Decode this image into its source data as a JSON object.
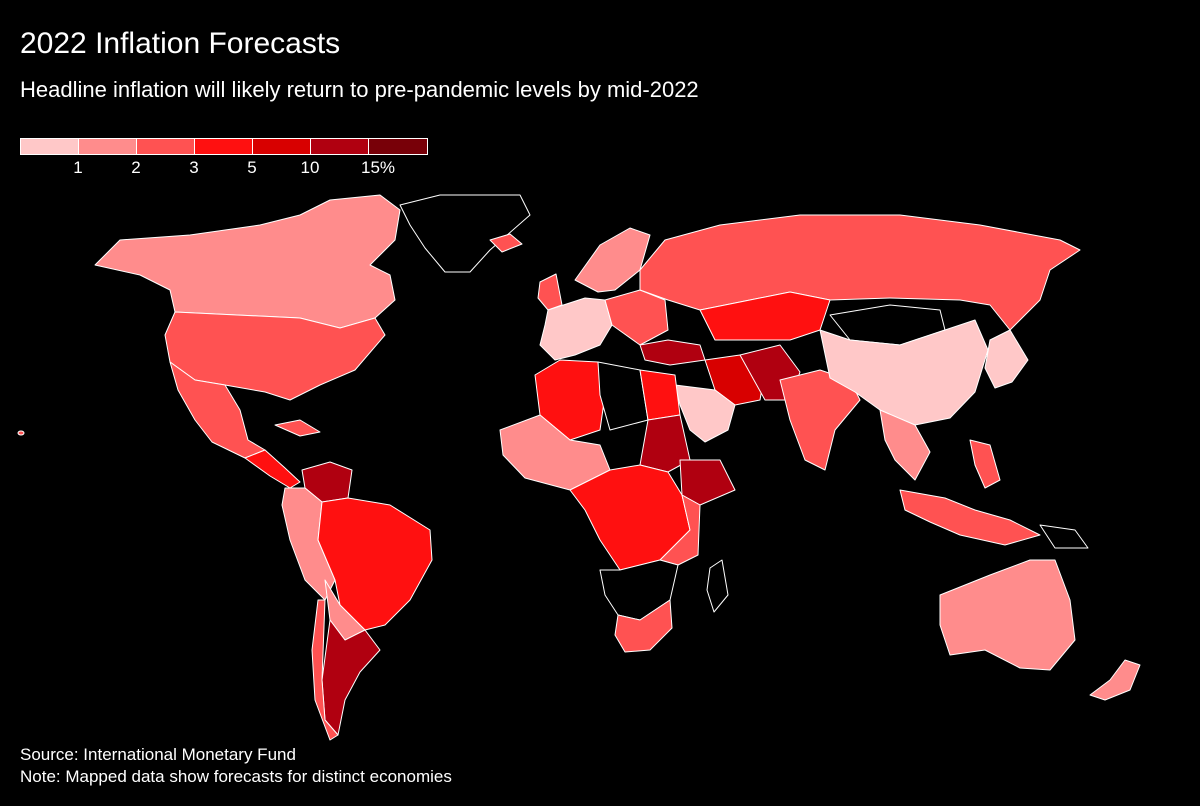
{
  "title": "2022 Inflation Forecasts",
  "subtitle": "Headline inflation will likely return to pre-pandemic levels by mid-2022",
  "legend": {
    "colors": [
      "#ffc8c8",
      "#ff8c8c",
      "#ff5252",
      "#ff1010",
      "#d80000",
      "#b00010",
      "#780008"
    ],
    "ticks": [
      "1",
      "2",
      "3",
      "5",
      "10",
      "15%"
    ]
  },
  "map_colors": {
    "no_data": "#000000",
    "outline": "#ffffff"
  },
  "footer": {
    "source": "Source: International Monetary Fund",
    "note": "Note: Mapped data show forecasts for distinct economies"
  }
}
